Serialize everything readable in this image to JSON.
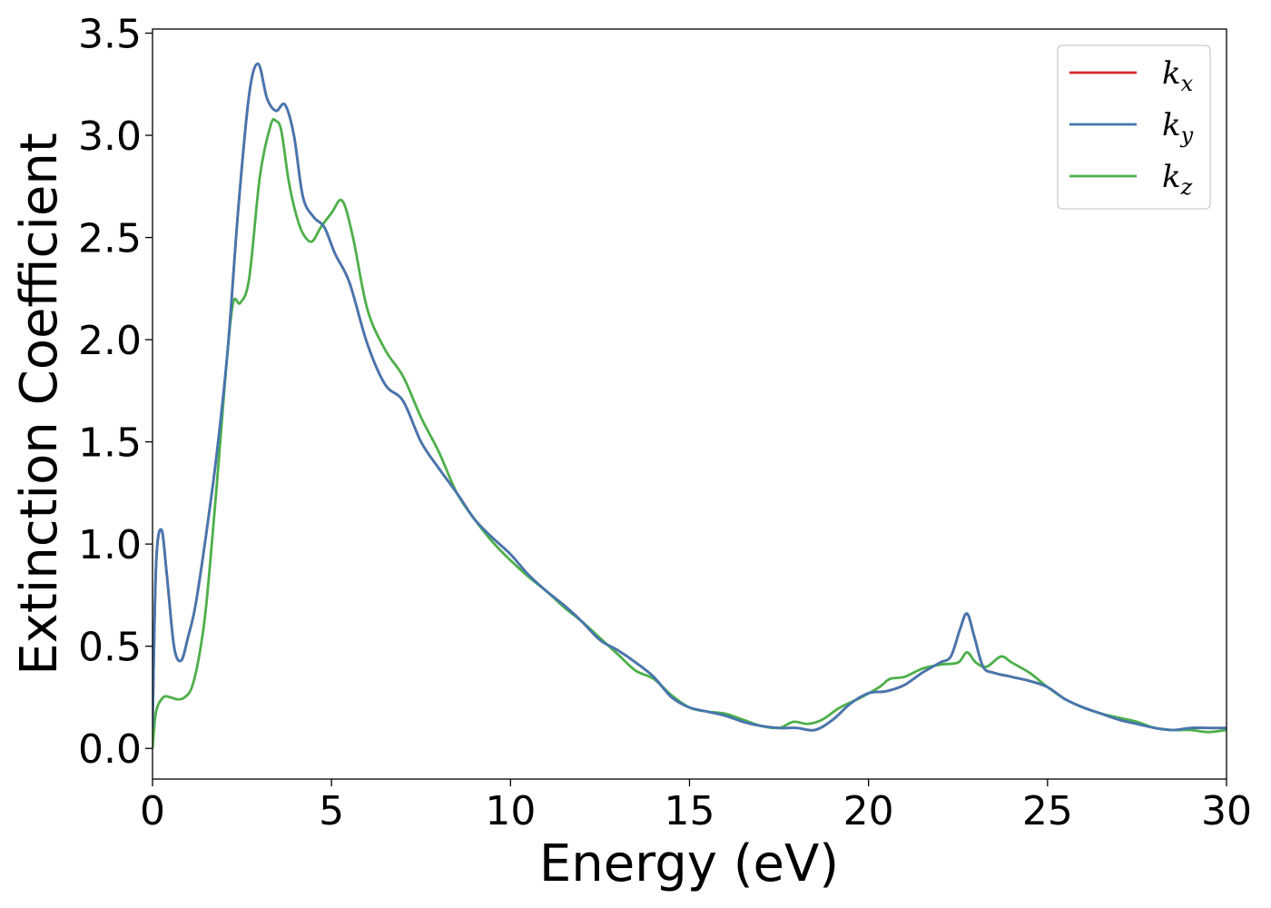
{
  "chart_data": {
    "type": "line",
    "title": "",
    "xlabel": "Energy (eV)",
    "ylabel": "Extinction Coefficient",
    "xlim": [
      0,
      30
    ],
    "ylim": [
      -0.15,
      3.52
    ],
    "xticks": [
      0,
      5,
      10,
      15,
      20,
      25,
      30
    ],
    "xtick_labels": [
      "0",
      "5",
      "10",
      "15",
      "20",
      "25",
      "30"
    ],
    "yticks": [
      0.0,
      0.5,
      1.0,
      1.5,
      2.0,
      2.5,
      3.0,
      3.5
    ],
    "ytick_labels": [
      "0.0",
      "0.5",
      "1.0",
      "1.5",
      "2.0",
      "2.5",
      "3.0",
      "3.5"
    ],
    "grid": false,
    "legend_position": "top-right",
    "series": [
      {
        "name": "k_x",
        "base": "k",
        "sub": "x",
        "color": "#d62728",
        "x": [
          0,
          0.1,
          0.25,
          0.4,
          0.6,
          0.8,
          1.0,
          1.2,
          1.5,
          1.8,
          2.1,
          2.4,
          2.7,
          2.95,
          3.2,
          3.45,
          3.7,
          3.95,
          4.2,
          4.5,
          4.8,
          5.1,
          5.5,
          6.0,
          6.5,
          7.0,
          7.5,
          8.0,
          8.5,
          9.0,
          9.5,
          10.0,
          10.5,
          11.0,
          11.5,
          12.0,
          12.5,
          13.0,
          13.5,
          14.0,
          14.5,
          15.0,
          15.5,
          16.0,
          16.5,
          17.0,
          17.5,
          18.0,
          18.5,
          19.0,
          19.5,
          20.0,
          20.5,
          21.0,
          21.5,
          22.0,
          22.3,
          22.55,
          22.75,
          22.95,
          23.2,
          23.5,
          24.0,
          24.5,
          25.0,
          25.5,
          26.0,
          26.5,
          27.0,
          27.5,
          28.0,
          28.5,
          29.0,
          29.5,
          30.0
        ],
        "y": [
          0.1,
          0.9,
          1.07,
          0.85,
          0.5,
          0.43,
          0.55,
          0.7,
          1.05,
          1.45,
          1.95,
          2.65,
          3.2,
          3.35,
          3.18,
          3.12,
          3.15,
          3.0,
          2.7,
          2.6,
          2.55,
          2.42,
          2.28,
          1.98,
          1.78,
          1.7,
          1.5,
          1.37,
          1.25,
          1.12,
          1.03,
          0.95,
          0.85,
          0.77,
          0.7,
          0.62,
          0.53,
          0.48,
          0.42,
          0.35,
          0.25,
          0.2,
          0.18,
          0.16,
          0.13,
          0.11,
          0.1,
          0.1,
          0.09,
          0.14,
          0.22,
          0.27,
          0.28,
          0.31,
          0.37,
          0.42,
          0.45,
          0.58,
          0.66,
          0.55,
          0.4,
          0.37,
          0.35,
          0.33,
          0.3,
          0.24,
          0.2,
          0.17,
          0.14,
          0.12,
          0.1,
          0.09,
          0.1,
          0.1,
          0.1
        ]
      },
      {
        "name": "k_y",
        "base": "k",
        "sub": "y",
        "color": "#4477b0",
        "x": [
          0,
          0.1,
          0.25,
          0.4,
          0.6,
          0.8,
          1.0,
          1.2,
          1.5,
          1.8,
          2.1,
          2.4,
          2.7,
          2.95,
          3.2,
          3.45,
          3.7,
          3.95,
          4.2,
          4.5,
          4.8,
          5.1,
          5.5,
          6.0,
          6.5,
          7.0,
          7.5,
          8.0,
          8.5,
          9.0,
          9.5,
          10.0,
          10.5,
          11.0,
          11.5,
          12.0,
          12.5,
          13.0,
          13.5,
          14.0,
          14.5,
          15.0,
          15.5,
          16.0,
          16.5,
          17.0,
          17.5,
          18.0,
          18.5,
          19.0,
          19.5,
          20.0,
          20.5,
          21.0,
          21.5,
          22.0,
          22.3,
          22.55,
          22.75,
          22.95,
          23.2,
          23.5,
          24.0,
          24.5,
          25.0,
          25.5,
          26.0,
          26.5,
          27.0,
          27.5,
          28.0,
          28.5,
          29.0,
          29.5,
          30.0
        ],
        "y": [
          0.1,
          0.9,
          1.07,
          0.85,
          0.5,
          0.43,
          0.55,
          0.7,
          1.05,
          1.45,
          1.95,
          2.65,
          3.2,
          3.35,
          3.18,
          3.12,
          3.15,
          3.0,
          2.7,
          2.6,
          2.55,
          2.42,
          2.28,
          1.98,
          1.78,
          1.7,
          1.5,
          1.37,
          1.25,
          1.12,
          1.03,
          0.95,
          0.85,
          0.77,
          0.7,
          0.62,
          0.53,
          0.48,
          0.42,
          0.35,
          0.25,
          0.2,
          0.18,
          0.16,
          0.13,
          0.11,
          0.1,
          0.1,
          0.09,
          0.14,
          0.22,
          0.27,
          0.28,
          0.31,
          0.37,
          0.42,
          0.45,
          0.58,
          0.66,
          0.55,
          0.4,
          0.37,
          0.35,
          0.33,
          0.3,
          0.24,
          0.2,
          0.17,
          0.14,
          0.12,
          0.1,
          0.09,
          0.1,
          0.1,
          0.1
        ]
      },
      {
        "name": "k_z",
        "base": "k",
        "sub": "z",
        "color": "#4daf4a",
        "x": [
          0,
          0.1,
          0.3,
          0.5,
          0.7,
          0.9,
          1.1,
          1.3,
          1.5,
          1.8,
          2.05,
          2.25,
          2.45,
          2.7,
          3.0,
          3.3,
          3.45,
          3.6,
          3.8,
          4.0,
          4.2,
          4.45,
          4.7,
          5.0,
          5.3,
          5.6,
          6.0,
          6.5,
          7.0,
          7.5,
          8.0,
          8.5,
          9.0,
          9.5,
          10.0,
          10.5,
          11.0,
          11.5,
          12.0,
          12.5,
          13.0,
          13.5,
          14.0,
          14.5,
          15.0,
          15.5,
          16.0,
          16.5,
          17.0,
          17.5,
          17.9,
          18.3,
          18.7,
          19.2,
          19.8,
          20.3,
          20.6,
          21.0,
          21.5,
          22.0,
          22.5,
          22.75,
          23.0,
          23.3,
          23.7,
          24.0,
          24.5,
          25.0,
          25.5,
          26.0,
          26.5,
          27.0,
          27.5,
          28.0,
          28.5,
          29.0,
          29.5,
          30.0
        ],
        "y": [
          0.0,
          0.18,
          0.25,
          0.25,
          0.24,
          0.25,
          0.3,
          0.45,
          0.7,
          1.3,
          1.85,
          2.18,
          2.18,
          2.3,
          2.8,
          3.05,
          3.07,
          3.02,
          2.78,
          2.62,
          2.52,
          2.48,
          2.55,
          2.62,
          2.68,
          2.5,
          2.15,
          1.95,
          1.82,
          1.62,
          1.45,
          1.25,
          1.12,
          1.01,
          0.92,
          0.84,
          0.77,
          0.69,
          0.62,
          0.54,
          0.46,
          0.38,
          0.34,
          0.26,
          0.2,
          0.18,
          0.17,
          0.14,
          0.11,
          0.1,
          0.13,
          0.12,
          0.14,
          0.2,
          0.25,
          0.3,
          0.34,
          0.35,
          0.39,
          0.41,
          0.42,
          0.47,
          0.42,
          0.4,
          0.45,
          0.42,
          0.37,
          0.3,
          0.24,
          0.2,
          0.17,
          0.15,
          0.13,
          0.1,
          0.09,
          0.09,
          0.08,
          0.09
        ]
      }
    ]
  }
}
